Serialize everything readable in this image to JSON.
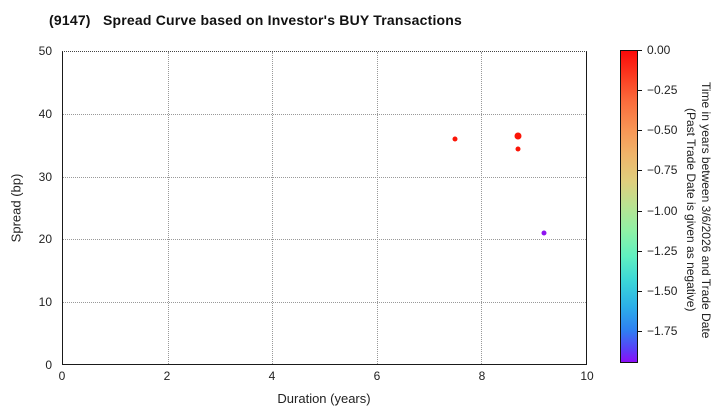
{
  "chart_data": {
    "type": "scatter",
    "title": "(9147)   Spread Curve based on Investor's BUY Transactions",
    "xlabel": "Duration (years)",
    "ylabel": "Spread (bp)",
    "xlim": [
      0,
      10
    ],
    "ylim": [
      0,
      50
    ],
    "xticks": [
      0,
      2,
      4,
      6,
      8,
      10
    ],
    "yticks": [
      0,
      10,
      20,
      30,
      40,
      50
    ],
    "grid": true,
    "legend_position": "none",
    "points": [
      {
        "x": 7.5,
        "y": 36.0,
        "color": "#fb1507",
        "size": 5,
        "time_value_approx": 0.0
      },
      {
        "x": 8.7,
        "y": 36.5,
        "color": "#fb1507",
        "size": 7,
        "time_value_approx": 0.0
      },
      {
        "x": 8.7,
        "y": 34.5,
        "color": "#fb1507",
        "size": 5,
        "time_value_approx": 0.0
      },
      {
        "x": 9.2,
        "y": 21.0,
        "color": "#8e13f0",
        "size": 5,
        "time_value_approx": -1.9
      }
    ],
    "colorbar": {
      "label_line1": "Time in years between 3/6/2026 and Trade Date",
      "label_line2": "(Past Trade Date is given as negative)",
      "vmax": 0.0,
      "vmin": -1.95,
      "tick_values": [
        0.0,
        -0.25,
        -0.5,
        -0.75,
        -1.0,
        -1.25,
        -1.5,
        -1.75
      ],
      "tick_labels": [
        "0.00",
        "−0.25",
        "−0.50",
        "−0.75",
        "−1.00",
        "−1.25",
        "−1.50",
        "−1.75"
      ],
      "gradient": [
        {
          "c": "#fb0a0a",
          "p": 0
        },
        {
          "c": "#fb3b20",
          "p": 8
        },
        {
          "c": "#fa6b3c",
          "p": 16
        },
        {
          "c": "#f89454",
          "p": 25
        },
        {
          "c": "#f0b369",
          "p": 33
        },
        {
          "c": "#dfcf7d",
          "p": 42
        },
        {
          "c": "#b8e392",
          "p": 50
        },
        {
          "c": "#8ef2a6",
          "p": 58
        },
        {
          "c": "#60f0c0",
          "p": 66
        },
        {
          "c": "#3bd6d8",
          "p": 74
        },
        {
          "c": "#2cb0e8",
          "p": 82
        },
        {
          "c": "#2f7ef2",
          "p": 90
        },
        {
          "c": "#5b3ef8",
          "p": 96
        },
        {
          "c": "#8b0df8",
          "p": 100
        }
      ]
    }
  }
}
